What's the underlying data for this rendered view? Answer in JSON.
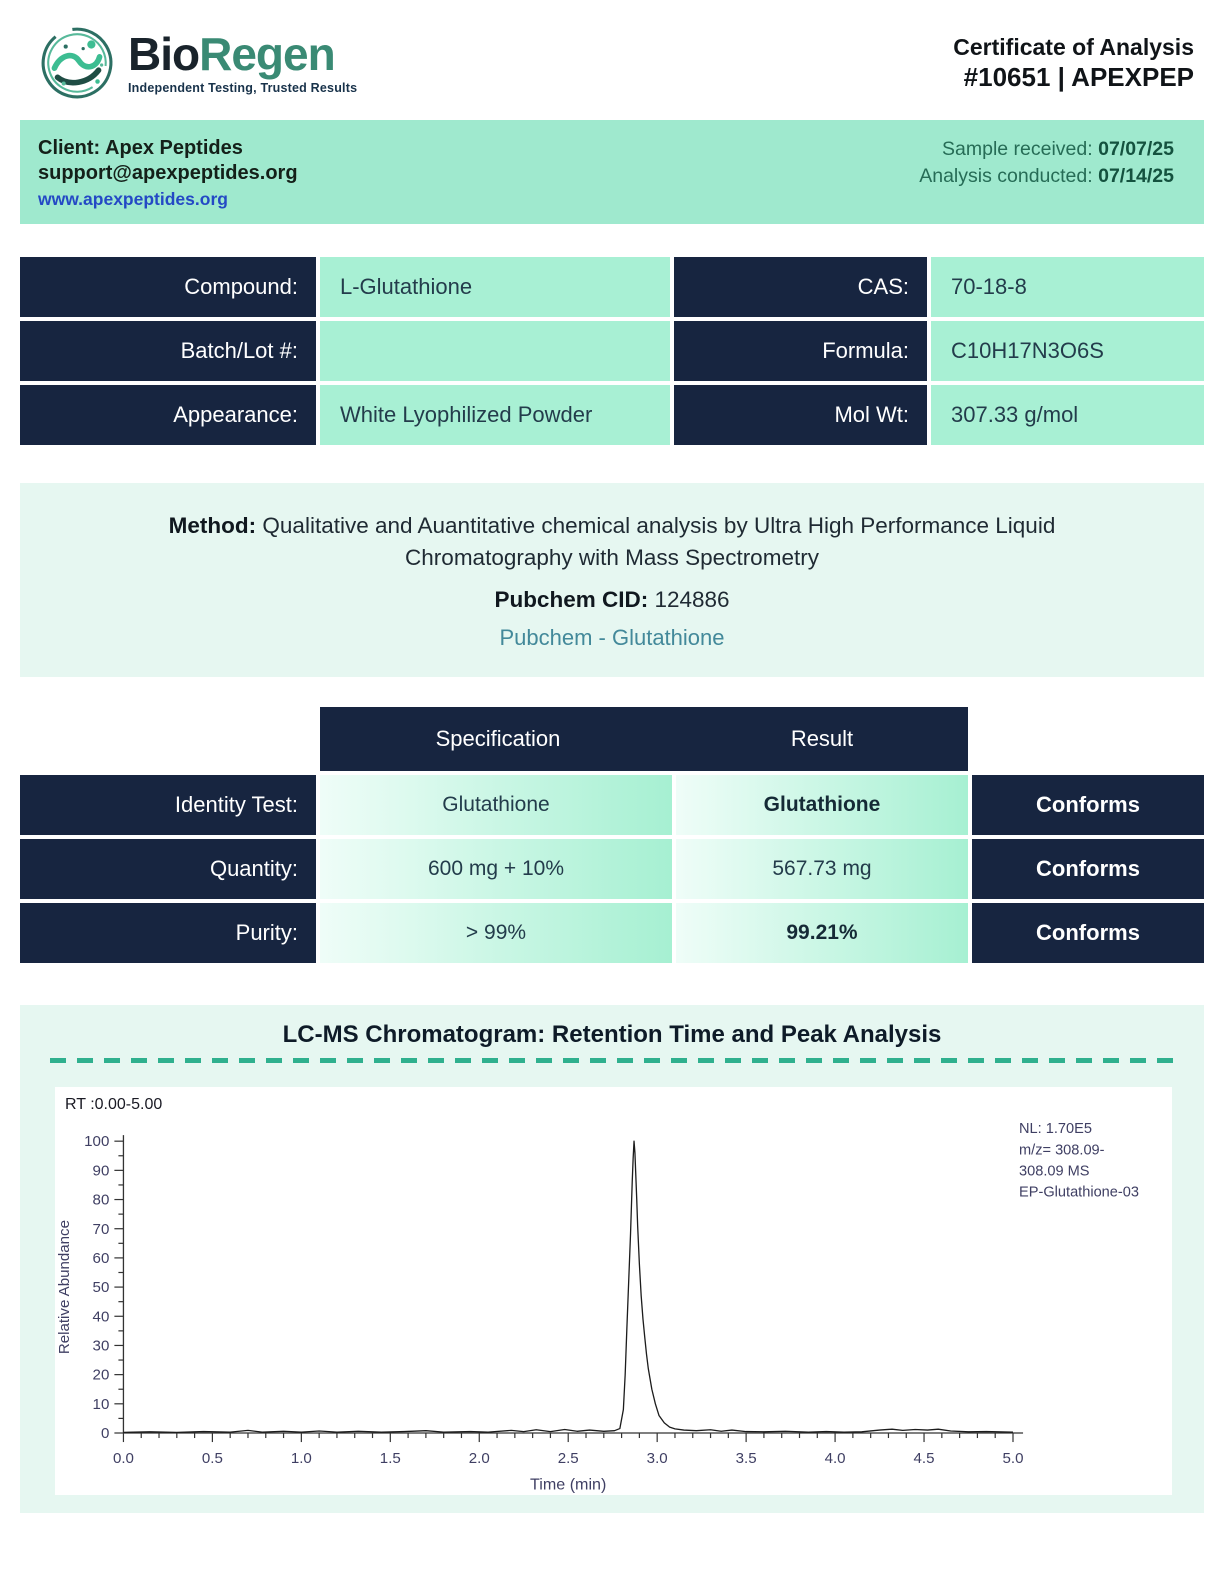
{
  "header": {
    "brand_dark": "Bio",
    "brand_accent": "Regen",
    "tagline": "Independent Testing, Trusted Results",
    "doc_title": "Certificate of Analysis",
    "doc_number": "#10651 | APEXPEP"
  },
  "client_bar": {
    "client": "Client: Apex Peptides",
    "email": "support@apexpeptides.org",
    "website": "www.apexpeptides.org",
    "received_label": "Sample received:",
    "received_date": "07/07/25",
    "conducted_label": "Analysis conducted:",
    "conducted_date": "07/14/25"
  },
  "compound_table": {
    "rows": [
      {
        "label_left": "Compound:",
        "value_left": "L-Glutathione",
        "label_right": "CAS:",
        "value_right": "70-18-8"
      },
      {
        "label_left": "Batch/Lot #:",
        "value_left": "",
        "label_right": "Formula:",
        "value_right": "C10H17N3O6S"
      },
      {
        "label_left": "Appearance:",
        "value_left": "White Lyophilized Powder",
        "label_right": "Mol Wt:",
        "value_right": "307.33 g/mol"
      }
    ]
  },
  "method": {
    "label": "Method:",
    "text": "Qualitative and Auantitative chemical analysis by Ultra High Performance Liquid Chromatography with Mass Spectrometry",
    "cid_label": "Pubchem CID:",
    "cid_value": "124886",
    "link": "Pubchem - Glutathione"
  },
  "results_table": {
    "col_spec": "Specification",
    "col_result": "Result",
    "rows": [
      {
        "label": "Identity Test:",
        "spec": "Glutathione",
        "result": "Glutathione",
        "status": "Conforms"
      },
      {
        "label": "Quantity:",
        "spec": "600 mg + 10%",
        "result": "567.73 mg",
        "status": "Conforms"
      },
      {
        "label": "Purity:",
        "spec": "> 99%",
        "result": "99.21%",
        "status": "Conforms"
      }
    ]
  },
  "colors": {
    "navy": "#172540",
    "mint": "#a8f0d4",
    "mint_panel": "#e6f7f1",
    "gradient_cell_start": "#effdf8",
    "gradient_cell_end": "#a6f0d2",
    "teal_accent": "#2fb08e",
    "link_blue": "#2449c5",
    "link_teal": "#43899a",
    "brand_green": "#3a8a74",
    "date_green": "#14523f"
  },
  "chart_data": {
    "type": "line",
    "title": "LC-MS Chromatogram: Retention Time and Peak Analysis",
    "rt_label": "RT :0.00-5.00",
    "xlabel": "Time (min)",
    "ylabel": "Relative Abundance",
    "xlim": [
      0.0,
      5.0
    ],
    "ylim": [
      0,
      100
    ],
    "x_major_tick": 0.5,
    "x_minor_tick": 0.1,
    "y_major_tick": 10,
    "y_minor_tick": 5,
    "peak_retention_time": 2.87,
    "peak_max_relative_abundance": 100,
    "annotation": [
      "NL: 1.70E5",
      "m/z= 308.09-",
      "308.09 MS",
      "EP-Glutathione-03"
    ],
    "legend_position": "top-right",
    "grid": false,
    "series": [
      {
        "name": "EP-Glutathione-03",
        "points": [
          [
            0.0,
            0.2
          ],
          [
            0.15,
            0.4
          ],
          [
            0.3,
            0.2
          ],
          [
            0.45,
            0.5
          ],
          [
            0.6,
            0.3
          ],
          [
            0.7,
            0.9
          ],
          [
            0.78,
            0.3
          ],
          [
            0.9,
            0.6
          ],
          [
            1.0,
            0.3
          ],
          [
            1.1,
            0.7
          ],
          [
            1.2,
            0.3
          ],
          [
            1.32,
            0.6
          ],
          [
            1.45,
            0.3
          ],
          [
            1.58,
            0.5
          ],
          [
            1.7,
            0.8
          ],
          [
            1.8,
            0.3
          ],
          [
            1.95,
            0.5
          ],
          [
            2.05,
            0.3
          ],
          [
            2.18,
            0.9
          ],
          [
            2.25,
            0.5
          ],
          [
            2.32,
            1.1
          ],
          [
            2.4,
            0.5
          ],
          [
            2.48,
            1.2
          ],
          [
            2.55,
            0.6
          ],
          [
            2.62,
            1.0
          ],
          [
            2.7,
            0.6
          ],
          [
            2.76,
            0.8
          ],
          [
            2.79,
            1.5
          ],
          [
            2.81,
            8
          ],
          [
            2.82,
            20
          ],
          [
            2.83,
            36
          ],
          [
            2.84,
            52
          ],
          [
            2.85,
            68
          ],
          [
            2.86,
            86
          ],
          [
            2.865,
            94
          ],
          [
            2.87,
            100
          ],
          [
            2.875,
            96
          ],
          [
            2.88,
            88
          ],
          [
            2.885,
            80
          ],
          [
            2.89,
            71
          ],
          [
            2.9,
            58
          ],
          [
            2.91,
            47
          ],
          [
            2.92,
            39
          ],
          [
            2.93,
            33
          ],
          [
            2.94,
            27
          ],
          [
            2.95,
            22
          ],
          [
            2.97,
            15
          ],
          [
            2.99,
            10
          ],
          [
            3.01,
            6
          ],
          [
            3.04,
            3.5
          ],
          [
            3.07,
            2
          ],
          [
            3.1,
            1.4
          ],
          [
            3.15,
            1.0
          ],
          [
            3.22,
            0.8
          ],
          [
            3.3,
            1.1
          ],
          [
            3.36,
            0.6
          ],
          [
            3.42,
            1.0
          ],
          [
            3.5,
            0.5
          ],
          [
            3.6,
            0.4
          ],
          [
            3.72,
            0.6
          ],
          [
            3.85,
            0.3
          ],
          [
            3.95,
            0.5
          ],
          [
            4.05,
            0.3
          ],
          [
            4.15,
            0.4
          ],
          [
            4.25,
            1.0
          ],
          [
            4.32,
            1.3
          ],
          [
            4.38,
            0.9
          ],
          [
            4.45,
            1.2
          ],
          [
            4.52,
            1.0
          ],
          [
            4.58,
            1.3
          ],
          [
            4.65,
            0.7
          ],
          [
            4.75,
            0.4
          ],
          [
            4.85,
            0.5
          ],
          [
            5.0,
            0.3
          ]
        ]
      }
    ]
  }
}
